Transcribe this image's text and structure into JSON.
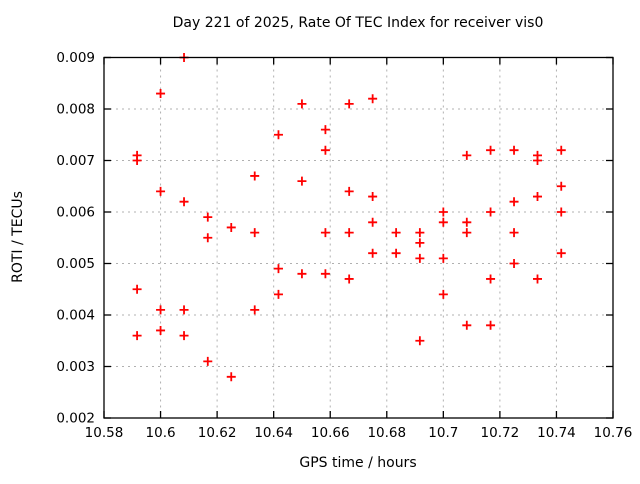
{
  "window": {
    "background": "#ffffff",
    "text_color": "#000000"
  },
  "chart_data": {
    "type": "scatter",
    "title": "Day 221 of 2025, Rate Of TEC Index for receiver vis0",
    "xlabel": "GPS time / hours",
    "ylabel": "ROTI / TECUs",
    "xlim": [
      10.58,
      10.76
    ],
    "ylim": [
      0.002,
      0.009
    ],
    "x_ticks": [
      10.58,
      10.6,
      10.62,
      10.64,
      10.66,
      10.68,
      10.7,
      10.72,
      10.74,
      10.76
    ],
    "x_tick_labels": [
      "10.58",
      "10.6",
      "10.62",
      "10.64",
      "10.66",
      "10.68",
      "10.7",
      "10.72",
      "10.74",
      "10.76"
    ],
    "y_ticks": [
      0.002,
      0.003,
      0.004,
      0.005,
      0.006,
      0.007,
      0.008,
      0.009
    ],
    "y_tick_labels": [
      "0.002",
      "0.003",
      "0.004",
      "0.005",
      "0.006",
      "0.007",
      "0.008",
      "0.009"
    ],
    "grid": true,
    "legend": "none",
    "colors": {
      "marker": "#ff0000",
      "grid": "#b0b0b0",
      "frame": "#000000"
    },
    "marker": {
      "shape": "plus",
      "size": 9,
      "stroke_width": 1.8
    },
    "series": [
      {
        "name": "ROTI",
        "points": [
          [
            10.5917,
            0.0071
          ],
          [
            10.5917,
            0.007
          ],
          [
            10.5917,
            0.0045
          ],
          [
            10.5917,
            0.0036
          ],
          [
            10.6,
            0.0083
          ],
          [
            10.6,
            0.0064
          ],
          [
            10.6,
            0.0041
          ],
          [
            10.6,
            0.0037
          ],
          [
            10.6083,
            0.009
          ],
          [
            10.6083,
            0.0062
          ],
          [
            10.6083,
            0.0041
          ],
          [
            10.6083,
            0.0036
          ],
          [
            10.6167,
            0.0059
          ],
          [
            10.6167,
            0.0055
          ],
          [
            10.6167,
            0.0031
          ],
          [
            10.625,
            0.0057
          ],
          [
            10.625,
            0.0028
          ],
          [
            10.6333,
            0.0067
          ],
          [
            10.6333,
            0.0056
          ],
          [
            10.6333,
            0.0041
          ],
          [
            10.6417,
            0.0075
          ],
          [
            10.6417,
            0.0049
          ],
          [
            10.6417,
            0.0044
          ],
          [
            10.65,
            0.0081
          ],
          [
            10.65,
            0.0066
          ],
          [
            10.65,
            0.0048
          ],
          [
            10.6583,
            0.0076
          ],
          [
            10.6583,
            0.0072
          ],
          [
            10.6583,
            0.0056
          ],
          [
            10.6583,
            0.0048
          ],
          [
            10.6667,
            0.0081
          ],
          [
            10.6667,
            0.0064
          ],
          [
            10.6667,
            0.0056
          ],
          [
            10.6667,
            0.0047
          ],
          [
            10.675,
            0.0082
          ],
          [
            10.675,
            0.0063
          ],
          [
            10.675,
            0.0058
          ],
          [
            10.675,
            0.0052
          ],
          [
            10.6833,
            0.0056
          ],
          [
            10.6833,
            0.0052
          ],
          [
            10.6917,
            0.0056
          ],
          [
            10.6917,
            0.0054
          ],
          [
            10.6917,
            0.0051
          ],
          [
            10.6917,
            0.0035
          ],
          [
            10.7,
            0.006
          ],
          [
            10.7,
            0.0058
          ],
          [
            10.7,
            0.0051
          ],
          [
            10.7,
            0.0044
          ],
          [
            10.7083,
            0.0071
          ],
          [
            10.7083,
            0.0058
          ],
          [
            10.7083,
            0.0056
          ],
          [
            10.7083,
            0.0038
          ],
          [
            10.7167,
            0.0072
          ],
          [
            10.7167,
            0.006
          ],
          [
            10.7167,
            0.0047
          ],
          [
            10.7167,
            0.0038
          ],
          [
            10.725,
            0.0072
          ],
          [
            10.725,
            0.0062
          ],
          [
            10.725,
            0.0056
          ],
          [
            10.725,
            0.005
          ],
          [
            10.7333,
            0.0071
          ],
          [
            10.7333,
            0.007
          ],
          [
            10.7333,
            0.0063
          ],
          [
            10.7333,
            0.0047
          ],
          [
            10.7417,
            0.0072
          ],
          [
            10.7417,
            0.0065
          ],
          [
            10.7417,
            0.006
          ],
          [
            10.7417,
            0.0052
          ]
        ]
      }
    ]
  }
}
